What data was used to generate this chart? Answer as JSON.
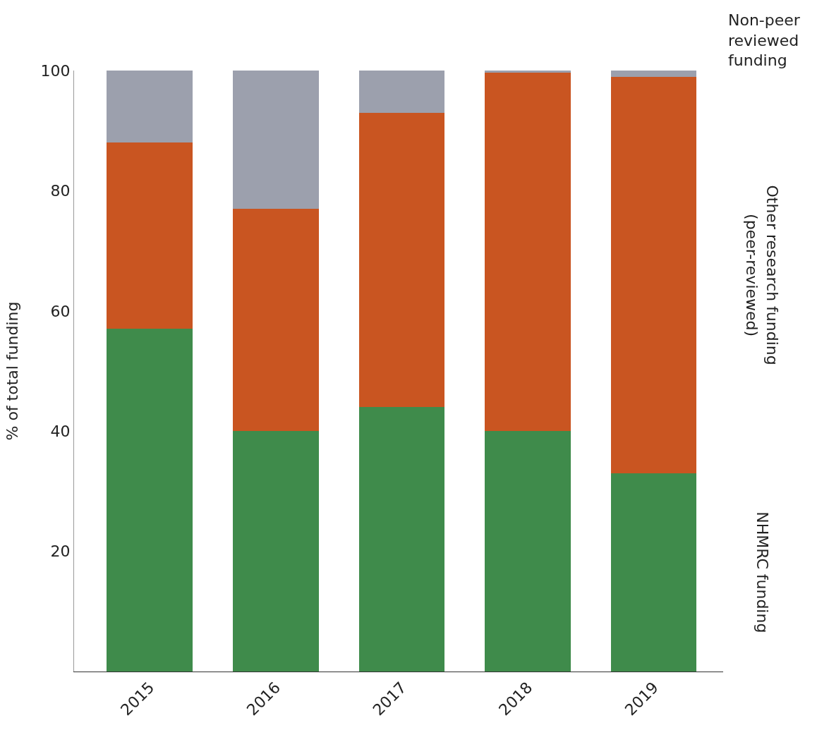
{
  "chart_data": {
    "type": "bar",
    "stacked": true,
    "ylabel": "% of total funding",
    "categories": [
      "2015",
      "2016",
      "2017",
      "2018",
      "2019"
    ],
    "series": [
      {
        "name": "NHMRC funding",
        "color": "#3f8b4b",
        "values": [
          57,
          40,
          44,
          40,
          33
        ]
      },
      {
        "name": "Other research funding (peer-reviewed)",
        "color": "#c95521",
        "values": [
          31,
          37,
          49,
          59.7,
          66
        ]
      },
      {
        "name": "Non-peer reviewed funding",
        "color": "#9ca0ad",
        "values": [
          12,
          23,
          7,
          0.3,
          1
        ]
      }
    ],
    "ylim": [
      0,
      100
    ],
    "yticks": [
      20,
      40,
      60,
      80,
      100
    ],
    "grid": false,
    "legend": false
  }
}
